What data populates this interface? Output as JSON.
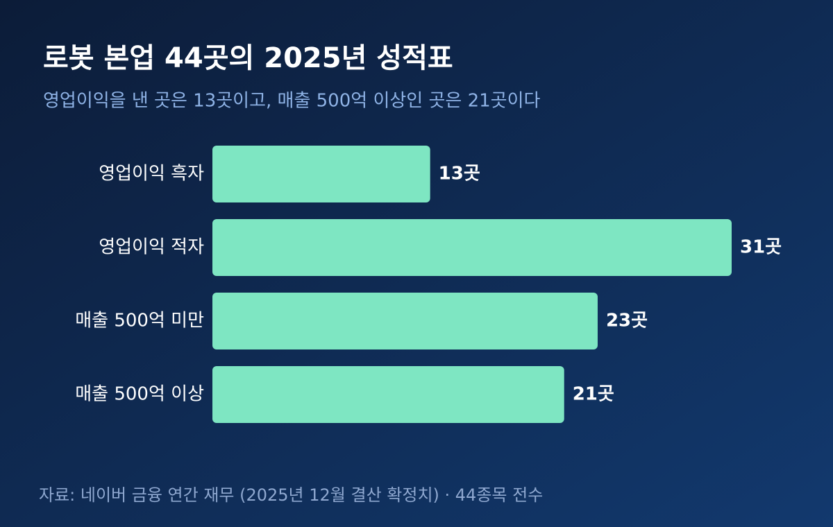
{
  "chart_data": {
    "type": "bar",
    "orientation": "horizontal",
    "title": "로봇 본업 44곳의 2025년 성적표",
    "subtitle": "영업이익을 낸 곳은 13곳이고, 매출 500억 이상인 곳은 21곳이다",
    "source": "자료: 네이버 금융 연간 재무 (2025년 12월 결산 확정치) · 44종목 전수",
    "categories": [
      "영업이익 흑자",
      "영업이익 적자",
      "매출 500억 미만",
      "매출 500억 이상"
    ],
    "values": [
      13,
      31,
      23,
      21
    ],
    "value_labels": [
      "13곳",
      "31곳",
      "23곳",
      "21곳"
    ],
    "color": "#7ee6c2"
  }
}
